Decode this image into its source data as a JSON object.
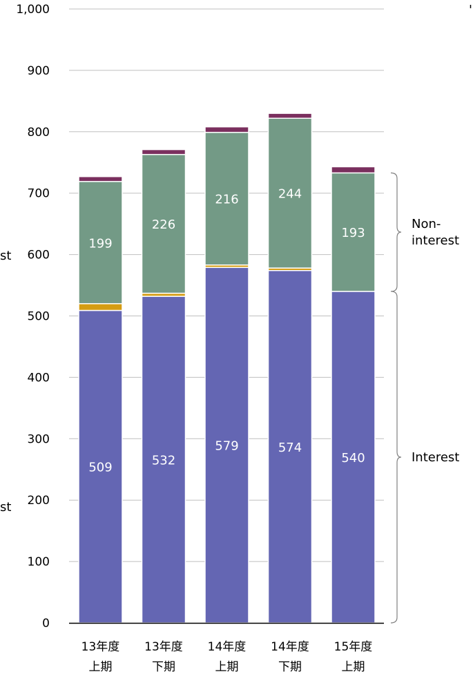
{
  "chart_data": {
    "type": "bar",
    "stacked": true,
    "categories": [
      [
        "13年度",
        "上期"
      ],
      [
        "13年度",
        "下期"
      ],
      [
        "14年度",
        "上期"
      ],
      [
        "14年度",
        "下期"
      ],
      [
        "15年度",
        "上期"
      ]
    ],
    "series": [
      {
        "color": "#6466b3",
        "values": [
          509,
          532,
          579,
          574,
          540
        ],
        "labeled": true
      },
      {
        "color": "#d59c12",
        "values": [
          11,
          5,
          4,
          4,
          0
        ],
        "labeled": false
      },
      {
        "color": "#739a86",
        "values": [
          199,
          226,
          216,
          244,
          193
        ],
        "labeled": true
      },
      {
        "color": "#7a2f5e",
        "values": [
          8,
          8,
          9,
          8,
          10
        ],
        "labeled": false
      }
    ],
    "yticks": [
      "0",
      "100",
      "200",
      "300",
      "400",
      "500",
      "600",
      "700",
      "800",
      "900",
      "1,000"
    ],
    "ylim": [
      0,
      1000
    ],
    "grid": true,
    "brackets": [
      {
        "label_lines": [
          "Non-",
          "interest"
        ],
        "from": 540,
        "to": 733
      },
      {
        "label_lines": [
          "Interest"
        ],
        "from": 0,
        "to": 540
      }
    ],
    "clipped_left_labels": [
      "st",
      "st"
    ],
    "clipped_corner_mark": "'"
  }
}
